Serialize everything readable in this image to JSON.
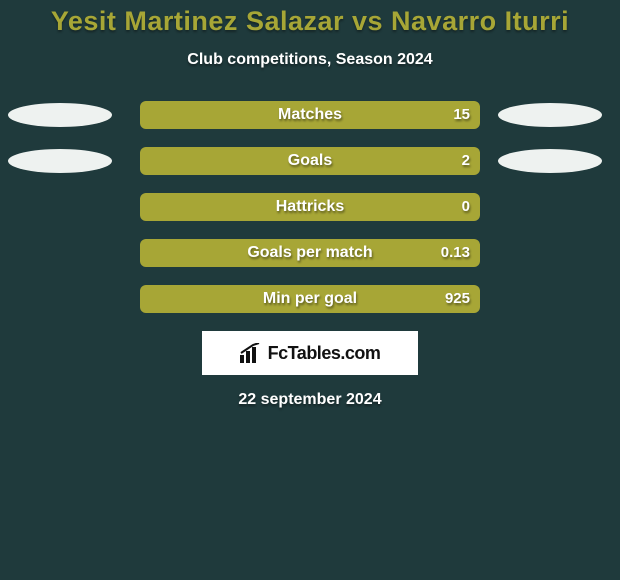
{
  "background_color": "#1f3a3c",
  "title": {
    "text": "Yesit Martinez Salazar vs Navarro Iturri",
    "color": "#a7a636",
    "fontsize": 27
  },
  "subtitle": {
    "text": "Club competitions, Season 2024",
    "color": "#ffffff",
    "fontsize": 16
  },
  "ellipse": {
    "left_color": "#eef2f0",
    "right_color": "#eef2f0",
    "left_width": 104,
    "right_width": 104
  },
  "bar": {
    "track_color": "#1c3133",
    "fill_color": "#a7a636",
    "label_fontsize": 16,
    "value_fontsize": 15
  },
  "rows": [
    {
      "label": "Matches",
      "value": "15",
      "fill_pct": 100,
      "show_ellipses": true
    },
    {
      "label": "Goals",
      "value": "2",
      "fill_pct": 100,
      "show_ellipses": true
    },
    {
      "label": "Hattricks",
      "value": "0",
      "fill_pct": 100,
      "show_ellipses": false
    },
    {
      "label": "Goals per match",
      "value": "0.13",
      "fill_pct": 100,
      "show_ellipses": false
    },
    {
      "label": "Min per goal",
      "value": "925",
      "fill_pct": 100,
      "show_ellipses": false
    }
  ],
  "brand": {
    "box_bg": "#ffffff",
    "text": "FcTables.com",
    "text_color": "#111111",
    "icon_color": "#111111"
  },
  "date": {
    "text": "22 september 2024",
    "color": "#ffffff",
    "fontsize": 16
  }
}
